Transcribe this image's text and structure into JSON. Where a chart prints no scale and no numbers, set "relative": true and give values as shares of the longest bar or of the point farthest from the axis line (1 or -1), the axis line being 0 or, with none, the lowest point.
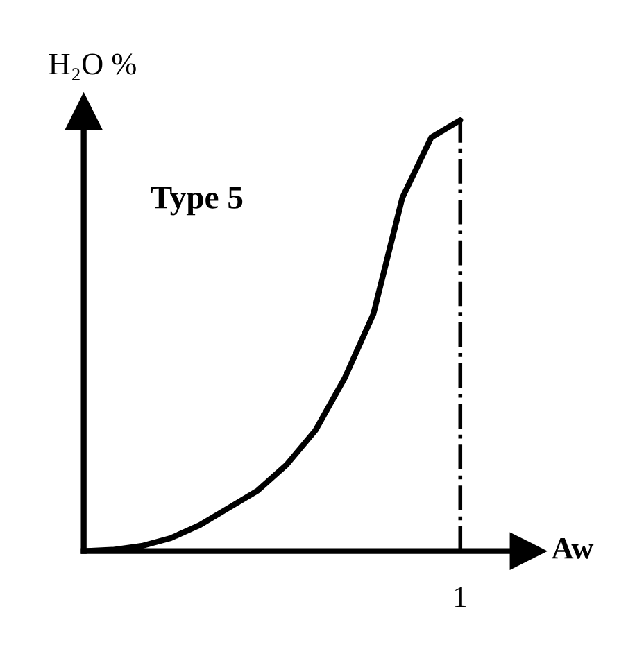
{
  "chart_data": {
    "type": "line",
    "relative": true,
    "xlabel": "Aw",
    "ylabel": "H₂O %",
    "annotations": [
      "Type 5"
    ],
    "categories": [
      null,
      null,
      null,
      null,
      null,
      null,
      null,
      null,
      null,
      null,
      null,
      null,
      null,
      null
    ],
    "series": [
      {
        "color": "#000000",
        "values": [
          0,
          0.003,
          0.012,
          0.03,
          0.06,
          0.1,
          0.14,
          0.2,
          0.28,
          0.4,
          0.55,
          0.82,
          0.96,
          1.0
        ]
      }
    ],
    "ref_lines": [
      {
        "axis": "x",
        "label": "1",
        "color": "#000000",
        "line_style": "dashdot"
      }
    ],
    "legend": false,
    "marker": "none",
    "line_style": "solid"
  }
}
